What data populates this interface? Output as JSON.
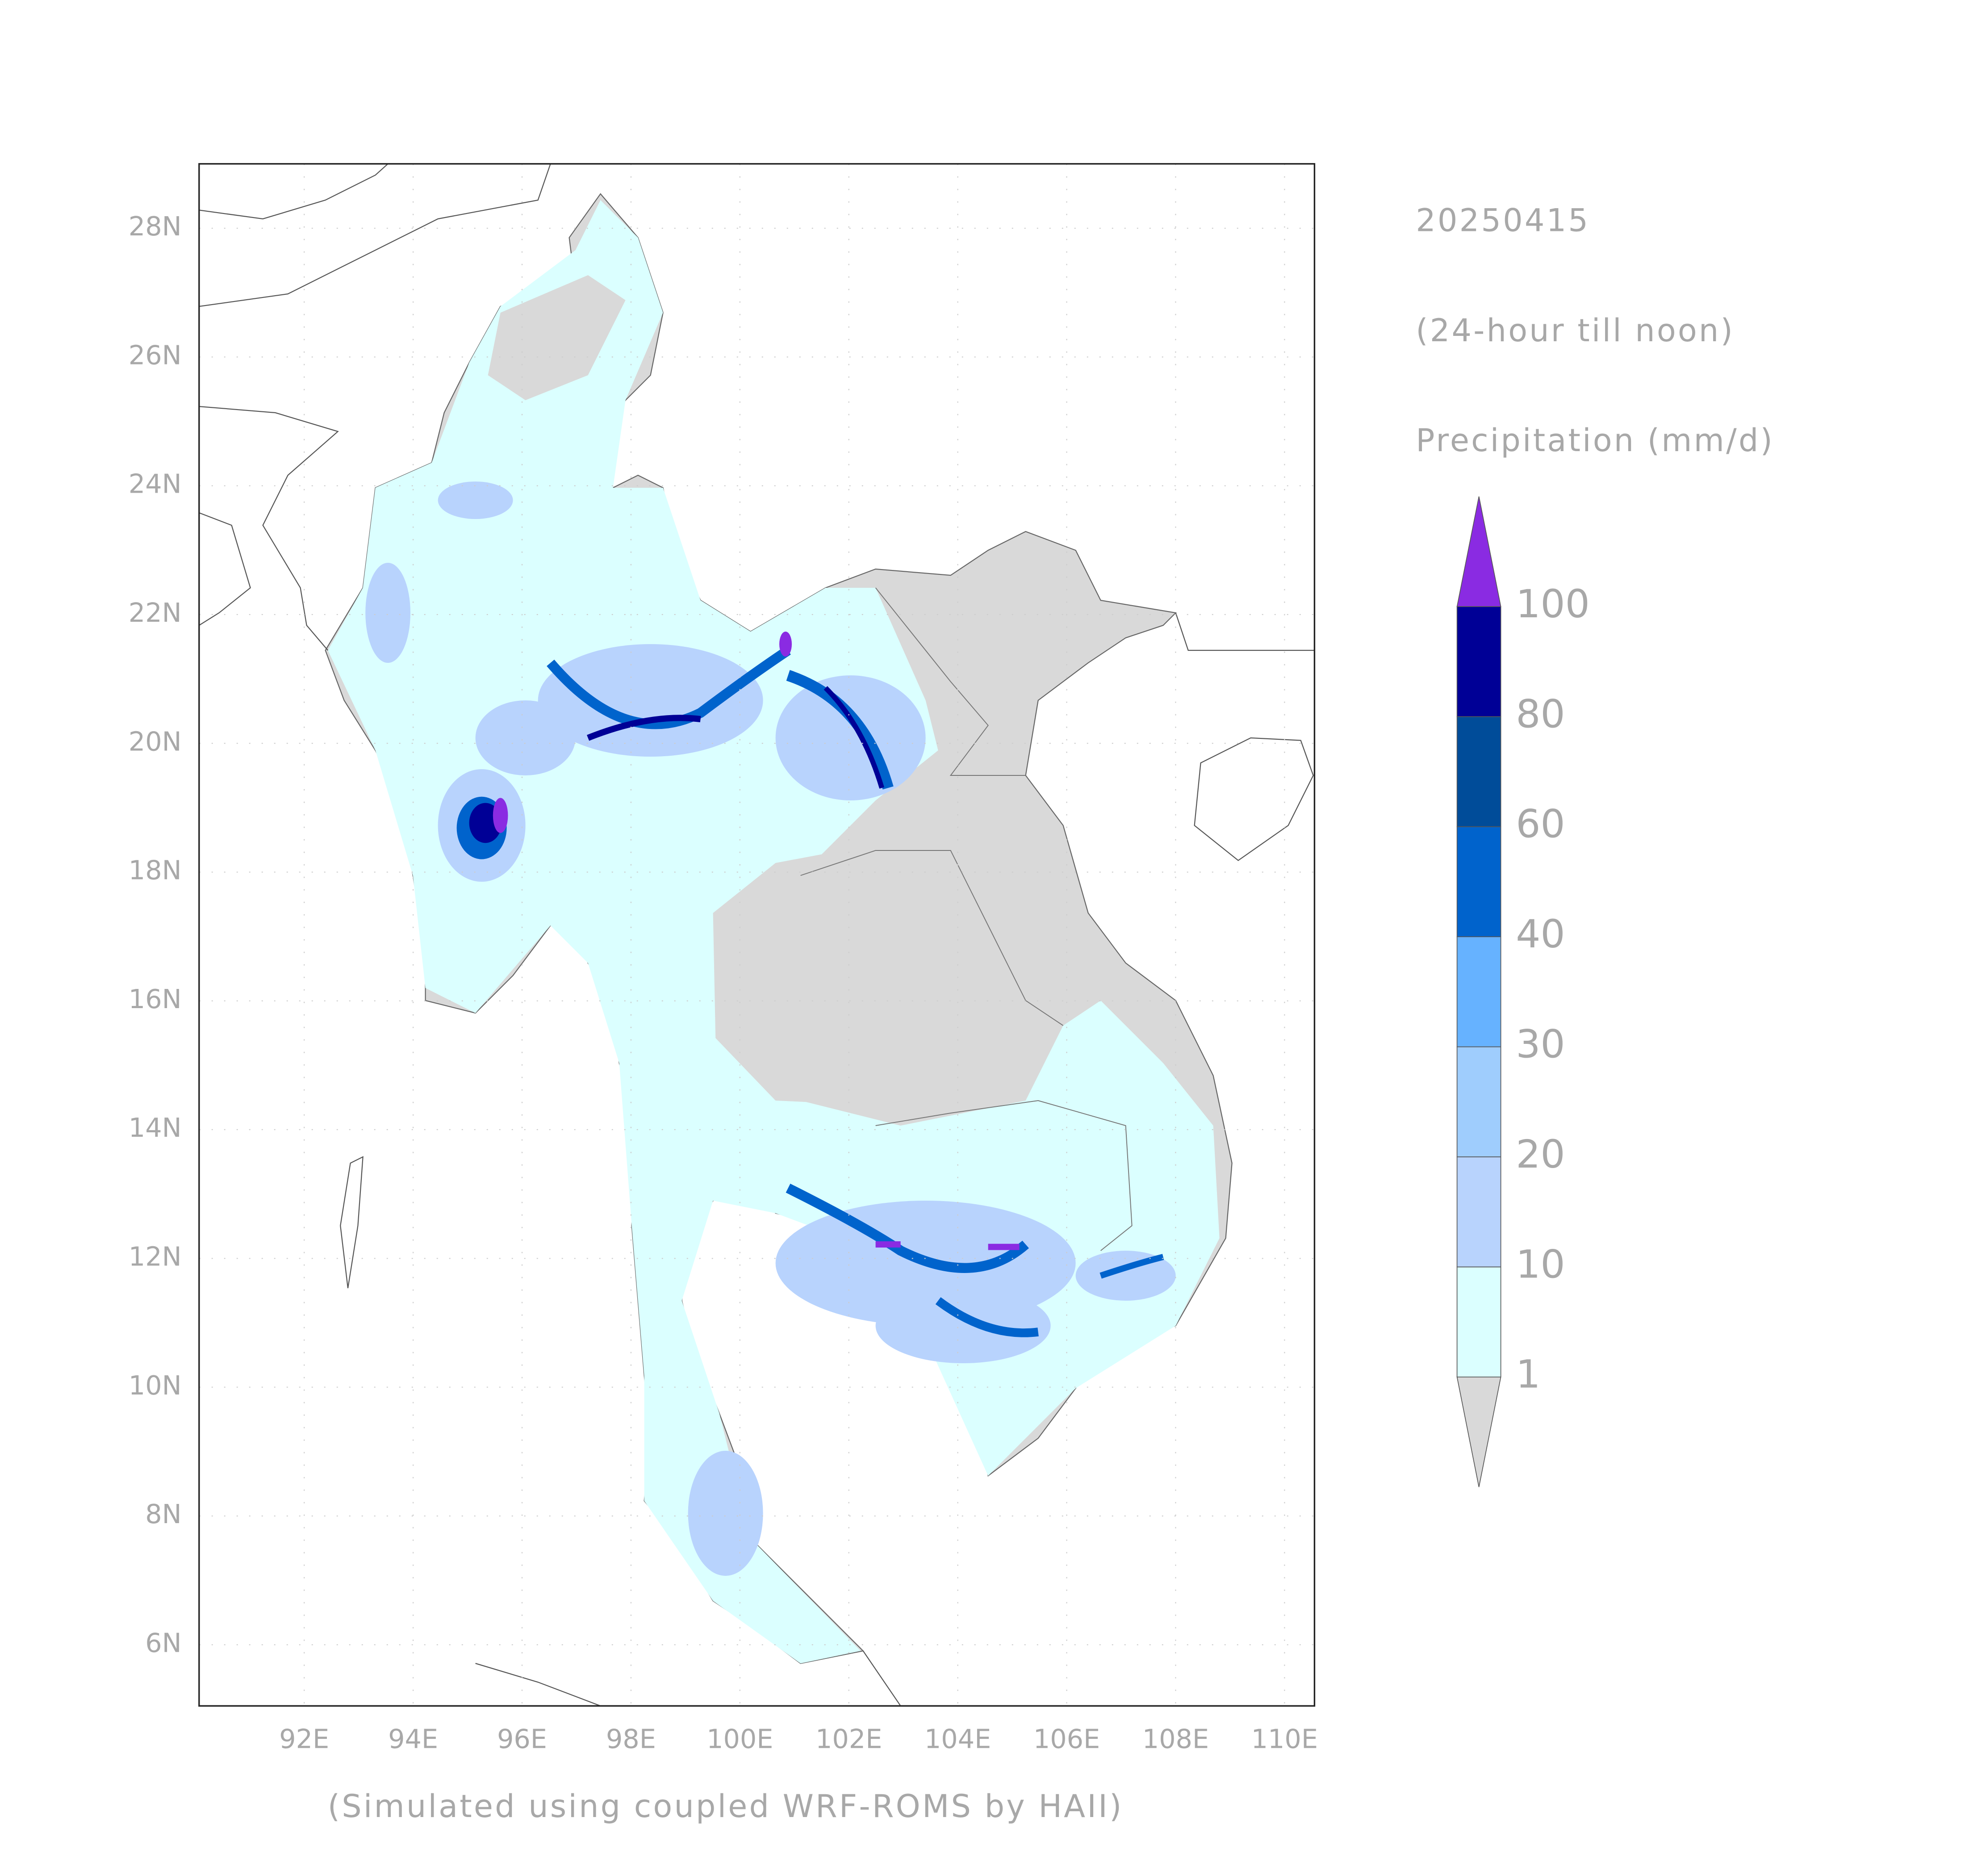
{
  "map": {
    "date": "20250415",
    "period": "(24-hour till noon)",
    "variable": "Precipitation (mm/d)",
    "credit": "(Simulated using coupled WRF-ROMS by HAII)",
    "xlim": [
      90.07,
      110.55
    ],
    "ylim": [
      5.05,
      29.0
    ],
    "grid": true,
    "xticks": [
      {
        "value": 92,
        "label": "92E"
      },
      {
        "value": 94,
        "label": "94E"
      },
      {
        "value": 96,
        "label": "96E"
      },
      {
        "value": 98,
        "label": "98E"
      },
      {
        "value": 100,
        "label": "100E"
      },
      {
        "value": 102,
        "label": "102E"
      },
      {
        "value": 104,
        "label": "104E"
      },
      {
        "value": 106,
        "label": "106E"
      },
      {
        "value": 108,
        "label": "108E"
      },
      {
        "value": 110,
        "label": "110E"
      }
    ],
    "yticks": [
      {
        "value": 6,
        "label": "6N"
      },
      {
        "value": 8,
        "label": "8N"
      },
      {
        "value": 10,
        "label": "10N"
      },
      {
        "value": 12,
        "label": "12N"
      },
      {
        "value": 14,
        "label": "14N"
      },
      {
        "value": 16,
        "label": "16N"
      },
      {
        "value": 18,
        "label": "18N"
      },
      {
        "value": 20,
        "label": "20N"
      },
      {
        "value": 22,
        "label": "22N"
      },
      {
        "value": 24,
        "label": "24N"
      },
      {
        "value": 26,
        "label": "26N"
      },
      {
        "value": 28,
        "label": "28N"
      }
    ],
    "colorbar": {
      "levels": [
        1,
        10,
        20,
        30,
        40,
        60,
        80,
        100
      ],
      "colors": [
        "#d9d9d9",
        "#dbffff",
        "#b8d3fd",
        "#9fcdfd",
        "#66b2ff",
        "#0063cc",
        "#004c99",
        "#000096",
        "#8a2be2"
      ]
    }
  }
}
